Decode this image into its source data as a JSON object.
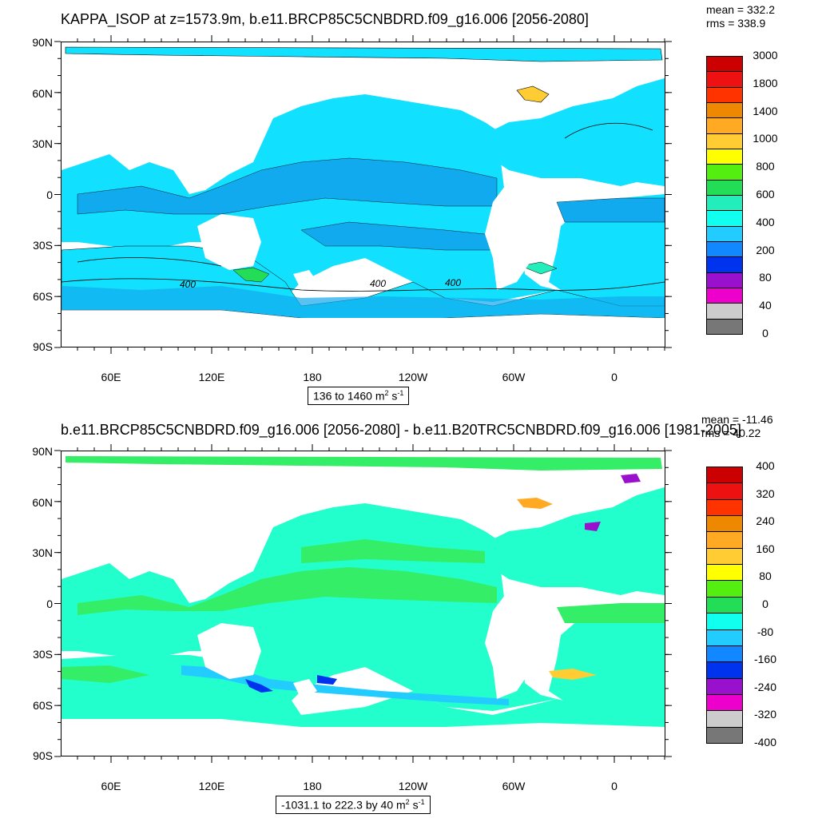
{
  "panel1": {
    "title": "KAPPA_ISOP at z=1573.9m, b.e11.BRCP85C5CNBDRD.f09_g16.006 [2056-2080]",
    "mean": "mean = 332.2",
    "rms": "rms = 338.9",
    "range_text": "136 to 1460 m",
    "range_sup1": "2",
    "range_mid": " s",
    "range_sup2": "-1",
    "contour_labels": [
      "400",
      "400",
      "400"
    ],
    "colorbar_labels": [
      "3000",
      "1800",
      "1400",
      "1000",
      "800",
      "600",
      "400",
      "200",
      "80",
      "40",
      "0"
    ],
    "colorbar_colors": [
      "#cc0000",
      "#ee1111",
      "#ff3300",
      "#ee8800",
      "#ffaa22",
      "#ffcc33",
      "#ffff00",
      "#55ee11",
      "#22dd55",
      "#22eebb",
      "#11ffee",
      "#22ccff",
      "#1188ff",
      "#0033ee",
      "#9911cc",
      "#ee00cc",
      "#cccccc",
      "#777777"
    ]
  },
  "panel2": {
    "title": "b.e11.BRCP85C5CNBDRD.f09_g16.006 [2056-2080] - b.e11.B20TRC5CNBDRD.f09_g16.006 [1981-2005]",
    "mean": "mean = -11.46",
    "rms": "rms = 40.22",
    "range_text": "-1031.1 to 222.3 by 40 m",
    "range_sup1": "2",
    "range_mid": " s",
    "range_sup2": "-1",
    "colorbar_labels": [
      "400",
      "320",
      "240",
      "160",
      "80",
      "0",
      "-80",
      "-160",
      "-240",
      "-320",
      "-400"
    ],
    "colorbar_colors": [
      "#cc0000",
      "#ee1111",
      "#ff3300",
      "#ee8800",
      "#ffaa22",
      "#ffcc33",
      "#ffff00",
      "#55ee11",
      "#22dd55",
      "#11ffee",
      "#22ccff",
      "#1188ff",
      "#0033ee",
      "#9911cc",
      "#ee00cc",
      "#cccccc",
      "#777777"
    ]
  },
  "axes": {
    "y_labels": [
      "90N",
      "60N",
      "30N",
      "0",
      "30S",
      "60S",
      "90S"
    ],
    "x_labels": [
      "60E",
      "120E",
      "180",
      "120W",
      "60W",
      "0"
    ]
  },
  "colors": {
    "ocean_main": "#11e0ff",
    "ocean_band": "#11aaee",
    "diff_ocean": "#22ffcc",
    "diff_band": "#33ee66"
  }
}
